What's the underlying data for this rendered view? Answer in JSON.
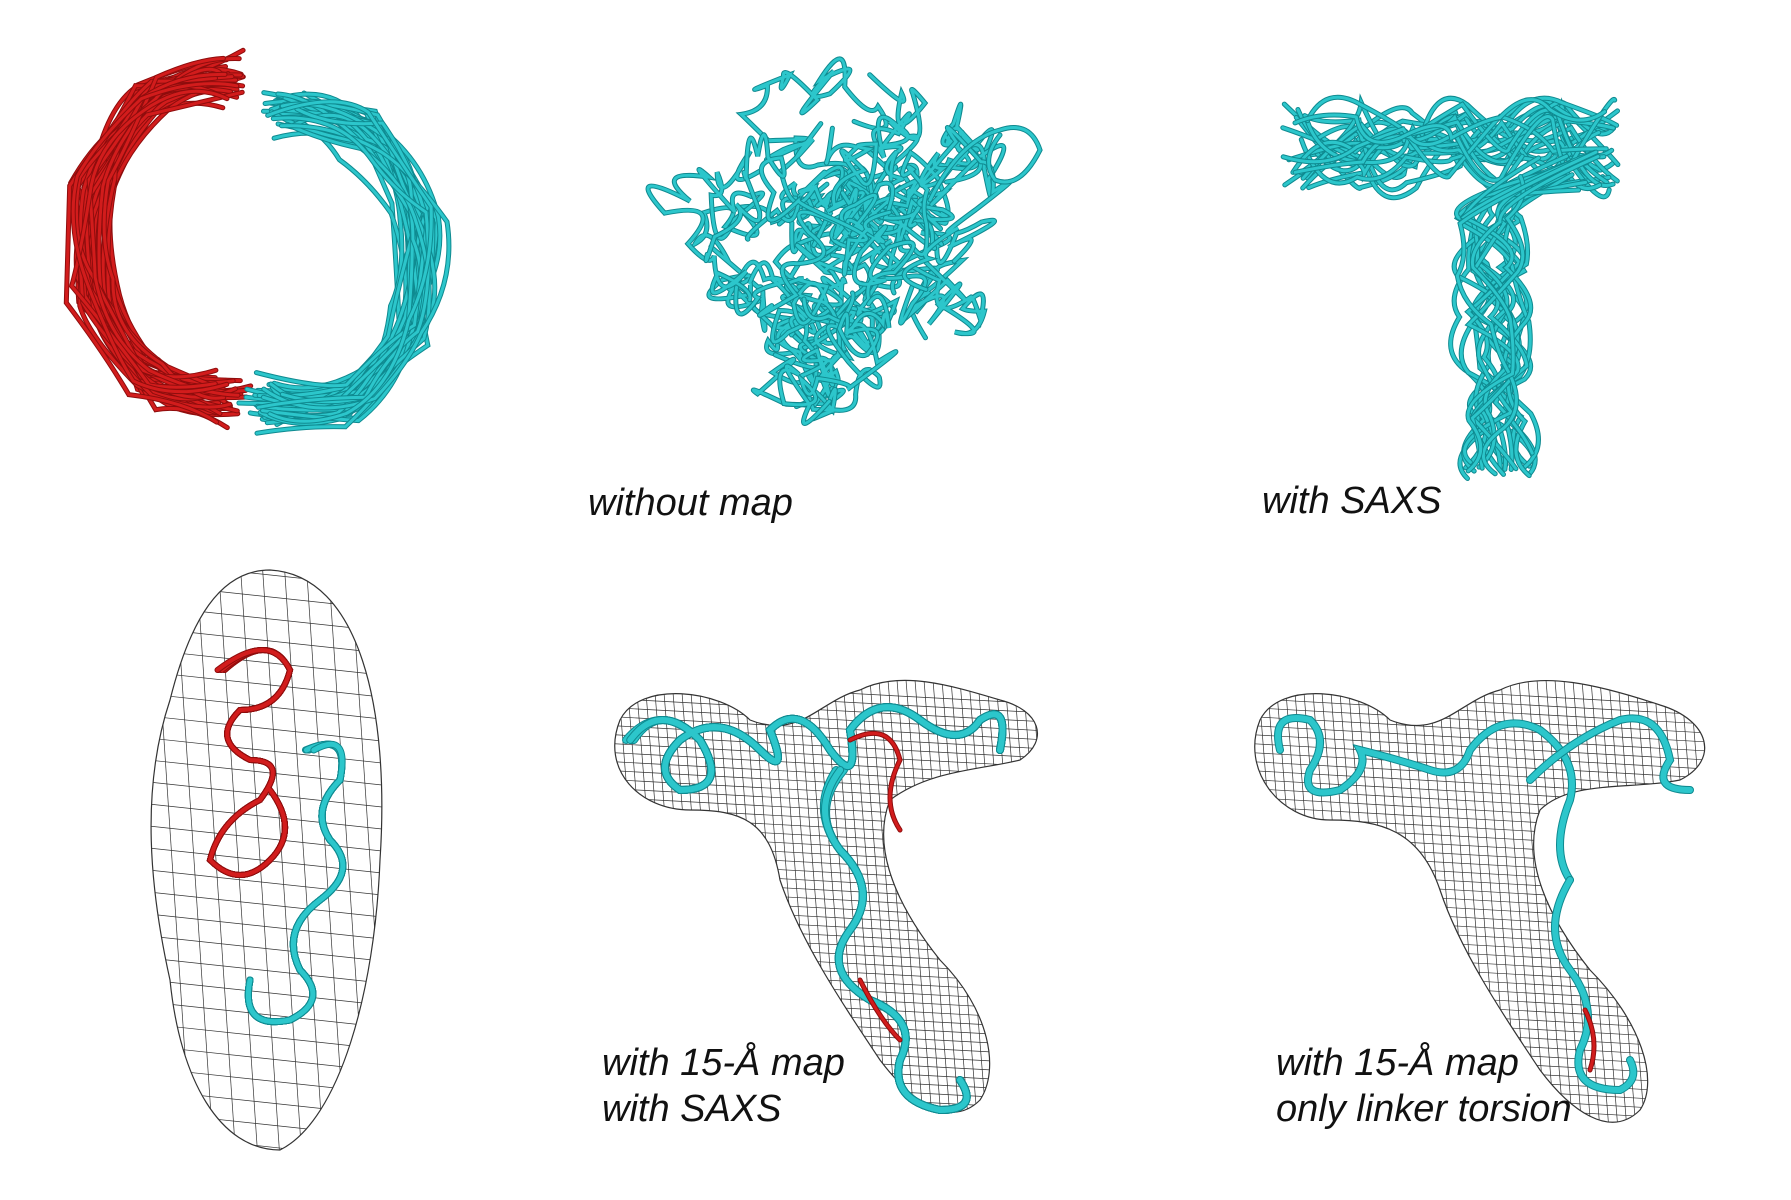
{
  "colors": {
    "domain_a": "#d21c1c",
    "domain_a_dark": "#8e0d0d",
    "domain_b": "#2cc6cb",
    "domain_b_dark": "#0f8a90",
    "mesh": "#333333",
    "background": "#ffffff"
  },
  "panels": [
    {
      "id": "top-left",
      "caption_lines": []
    },
    {
      "id": "top-middle",
      "caption_lines": [
        "without map"
      ]
    },
    {
      "id": "top-right",
      "caption_lines": [
        "with SAXS"
      ]
    },
    {
      "id": "bottom-left",
      "caption_lines": []
    },
    {
      "id": "bottom-middle",
      "caption_lines": [
        "with 15-Å map",
        "with SAXS"
      ]
    },
    {
      "id": "bottom-right",
      "caption_lines": [
        "with 15-Å map",
        "only linker torsion"
      ]
    }
  ]
}
